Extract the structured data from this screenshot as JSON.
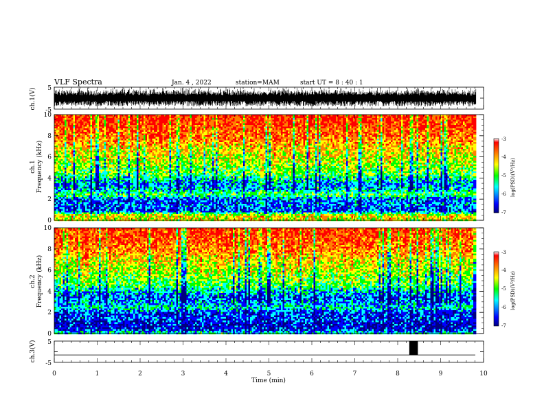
{
  "header": {
    "title": "VLF Spectra",
    "date": "Jan. 4 , 2022",
    "station": "station=MAM",
    "start": "start UT = 8 : 40 : 1"
  },
  "colors": {
    "spectrum": [
      "#000080",
      "#0000ff",
      "#00ffff",
      "#00ff00",
      "#ffff00",
      "#ff8000",
      "#ff0000"
    ]
  },
  "chart_data": [
    {
      "type": "line",
      "name": "ch1-waveform",
      "ylabel": "ch.1(V)",
      "ylim": [
        -5,
        5
      ],
      "yticks": [
        "5",
        "-5"
      ],
      "x_range_min": [
        0,
        9.83
      ],
      "description_level": "dense noise with spikes between roughly -4 and 4 V"
    },
    {
      "type": "heatmap",
      "name": "ch1-spectrogram",
      "ylabel_line1": "ch.1",
      "ylabel_line2": "Frequency (kHz)",
      "ylim": [
        0,
        10
      ],
      "yticks": [
        "0",
        "2",
        "4",
        "6",
        "8",
        "10"
      ],
      "colorbar": {
        "ticks": [
          "-3",
          "-4",
          "-5",
          "-6",
          "-7"
        ],
        "label": "log(PSD)(V²/Hz)",
        "range": [
          -7,
          -3
        ]
      },
      "intensity_by_frequency": {
        "freq_khz": [
          0,
          0.5,
          1,
          1.5,
          2,
          2.5,
          3,
          3.5,
          4,
          4.5,
          5,
          6,
          7,
          8,
          9,
          10
        ],
        "log_psd": [
          -4.5,
          -4.2,
          -6.2,
          -5.8,
          -6.0,
          -5.0,
          -5.6,
          -5.8,
          -5.4,
          -5.0,
          -4.8,
          -4.5,
          -4.2,
          -3.8,
          -3.5,
          -3.4
        ]
      }
    },
    {
      "type": "heatmap",
      "name": "ch2-spectrogram",
      "ylabel_line1": "ch.2",
      "ylabel_line2": "Frequency (kHz)",
      "ylim": [
        0,
        10
      ],
      "yticks": [
        "0",
        "2",
        "4",
        "6",
        "8",
        "10"
      ],
      "colorbar": {
        "ticks": [
          "-3",
          "-4",
          "-5",
          "-6",
          "-7"
        ],
        "label": "log(PSD)(V²/Hz)",
        "range": [
          -7,
          -3
        ]
      },
      "intensity_by_frequency": {
        "freq_khz": [
          0,
          0.5,
          1,
          1.5,
          2,
          2.5,
          3,
          3.5,
          4,
          4.5,
          5,
          6,
          7,
          8,
          9,
          10
        ],
        "log_psd": [
          -5.2,
          -6.3,
          -6.4,
          -6.0,
          -6.2,
          -5.4,
          -5.8,
          -6.0,
          -5.6,
          -5.2,
          -4.9,
          -4.6,
          -4.3,
          -3.9,
          -3.6,
          -3.5
        ]
      }
    },
    {
      "type": "line",
      "name": "ch3-waveform",
      "ylabel": "ch.3(V)",
      "ylim": [
        -5,
        5
      ],
      "yticks": [
        "5",
        "-5"
      ],
      "baseline_v": -1.5,
      "pulse": {
        "x_start_min": 8.27,
        "x_end_min": 8.47,
        "v": 5
      }
    }
  ],
  "x_axis": {
    "label": "Time (min)",
    "range": [
      0,
      10
    ],
    "ticks": [
      "0",
      "1",
      "2",
      "3",
      "4",
      "5",
      "6",
      "7",
      "8",
      "9",
      "10"
    ]
  }
}
